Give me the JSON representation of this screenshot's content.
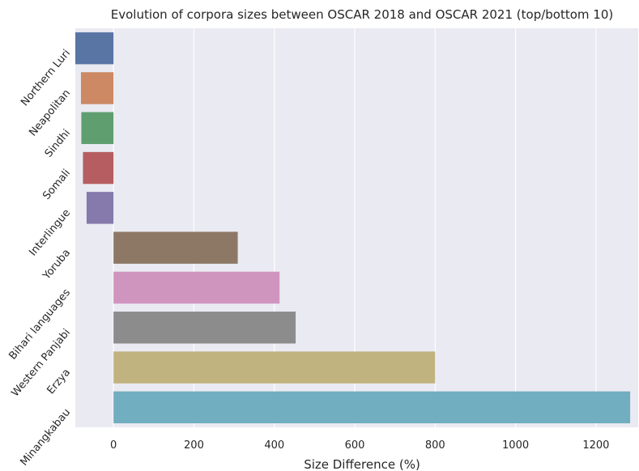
{
  "chart_data": {
    "type": "bar",
    "orientation": "horizontal",
    "title": "Evolution of corpora sizes between OSCAR 2018 and OSCAR 2021 (top/bottom 10)",
    "xlabel": "Size Difference (%)",
    "ylabel": "",
    "xlim": [
      -95,
      1305
    ],
    "xticks": [
      0,
      200,
      400,
      600,
      800,
      1000,
      1200
    ],
    "grid": true,
    "categories": [
      "Northern Luri",
      "Neapolitan",
      "Sindhi",
      "Somali",
      "Interlingue",
      "Yoruba",
      "Bihari languages",
      "Western Panjabi",
      "Erzya",
      "Minangkabau"
    ],
    "values": [
      -95,
      -81,
      -80,
      -76,
      -67,
      309,
      413,
      453,
      800,
      1285
    ],
    "colors": [
      "#5975a4",
      "#cc8963",
      "#5f9e6e",
      "#b55d60",
      "#857aab",
      "#8d7866",
      "#d095bf",
      "#8c8c8c",
      "#c1b37f",
      "#71aec0"
    ]
  }
}
